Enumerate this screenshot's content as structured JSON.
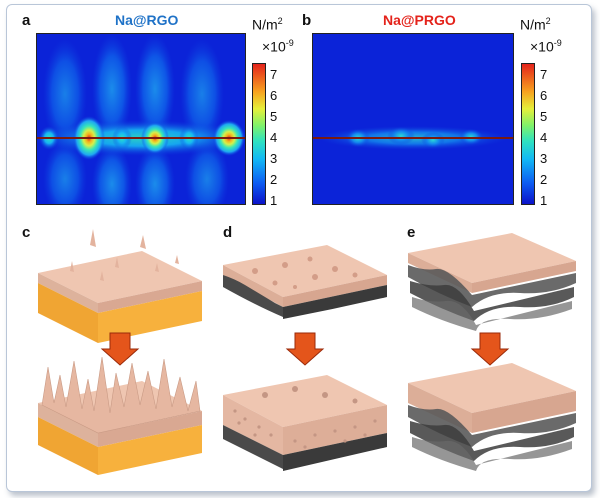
{
  "panels": {
    "a": {
      "letter": "a",
      "title": "Na@RGO"
    },
    "b": {
      "letter": "b",
      "title": "Na@PRGO"
    },
    "c": {
      "letter": "c"
    },
    "d": {
      "letter": "d"
    },
    "e": {
      "letter": "e"
    }
  },
  "colorbar": {
    "unit_base": "N/m",
    "unit_exp": "2",
    "scale_base": "×10",
    "scale_exp": "-9",
    "ticks": [
      "7",
      "6",
      "5",
      "4",
      "3",
      "2",
      "1"
    ]
  },
  "colors": {
    "rgo": "#1f72c7",
    "prgo": "#e4231b",
    "arrow": "#e4551b",
    "substrate": "#f2a93b",
    "deposit": "#e9b9a3"
  }
}
